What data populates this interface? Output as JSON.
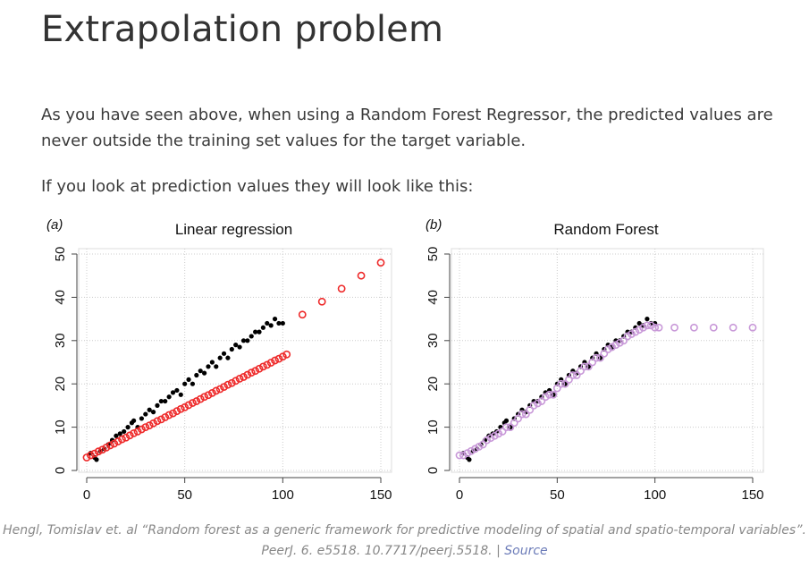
{
  "heading": "Extrapolation problem",
  "paragraph1": "As you have seen above, when using a Random Forest Regressor, the predicted values are never outside the training set values for the target variable.",
  "paragraph2": "If you look at prediction values they will look like this:",
  "caption": {
    "text": "Hengl, Tomislav et. al “Random forest as a generic framework for predictive modeling of spatial and spatio-temporal variables”. PeerJ. 6. e5518. 10.7717/peerj.5518. |",
    "link_label": "Source"
  },
  "colors": {
    "observed": "#000000",
    "lr_pred": "#ee2a2a",
    "rf_pred": "#c898d8",
    "grid": "#cccccc"
  },
  "chart_data": [
    {
      "type": "scatter",
      "panel_label": "(a)",
      "title": "Linear regression",
      "xlabel": "",
      "ylabel": "",
      "xlim": [
        0,
        150
      ],
      "ylim": [
        0,
        50
      ],
      "x_ticks": [
        0,
        50,
        100,
        150
      ],
      "y_ticks": [
        0,
        10,
        20,
        30,
        40,
        50
      ],
      "grid": true,
      "series": [
        {
          "marker": "filled-circle",
          "color": "#000000",
          "points": [
            [
              2,
              4
            ],
            [
              4,
              3
            ],
            [
              5,
              2.5
            ],
            [
              7,
              4.5
            ],
            [
              9,
              5
            ],
            [
              11,
              6
            ],
            [
              13,
              7
            ],
            [
              15,
              8
            ],
            [
              17,
              8.5
            ],
            [
              19,
              9
            ],
            [
              21,
              10
            ],
            [
              23,
              11
            ],
            [
              24,
              11.5
            ],
            [
              26,
              10
            ],
            [
              28,
              12
            ],
            [
              30,
              13
            ],
            [
              32,
              14
            ],
            [
              34,
              13.5
            ],
            [
              36,
              15
            ],
            [
              38,
              16
            ],
            [
              40,
              16
            ],
            [
              42,
              17
            ],
            [
              44,
              18
            ],
            [
              46,
              18.5
            ],
            [
              48,
              17.5
            ],
            [
              50,
              20
            ],
            [
              52,
              21
            ],
            [
              54,
              20
            ],
            [
              56,
              22
            ],
            [
              58,
              23
            ],
            [
              60,
              22.5
            ],
            [
              62,
              24
            ],
            [
              64,
              25
            ],
            [
              66,
              24
            ],
            [
              68,
              26
            ],
            [
              70,
              27
            ],
            [
              72,
              26
            ],
            [
              74,
              28
            ],
            [
              76,
              29
            ],
            [
              78,
              28.5
            ],
            [
              80,
              30
            ],
            [
              82,
              30
            ],
            [
              84,
              31
            ],
            [
              86,
              32
            ],
            [
              88,
              32
            ],
            [
              90,
              33
            ],
            [
              92,
              34
            ],
            [
              94,
              33.5
            ],
            [
              96,
              35
            ],
            [
              98,
              34
            ],
            [
              100,
              34
            ]
          ]
        },
        {
          "marker": "open-circle",
          "color": "#ee2a2a",
          "points": [
            [
              0,
              3
            ],
            [
              2,
              3.5
            ],
            [
              4,
              3.9
            ],
            [
              6,
              4.4
            ],
            [
              8,
              4.8
            ],
            [
              10,
              5.3
            ],
            [
              12,
              5.8
            ],
            [
              14,
              6.2
            ],
            [
              16,
              6.7
            ],
            [
              18,
              7.2
            ],
            [
              20,
              7.6
            ],
            [
              22,
              8.1
            ],
            [
              24,
              8.6
            ],
            [
              26,
              9
            ],
            [
              28,
              9.5
            ],
            [
              30,
              10
            ],
            [
              32,
              10.4
            ],
            [
              34,
              10.9
            ],
            [
              36,
              11.4
            ],
            [
              38,
              11.8
            ],
            [
              40,
              12.3
            ],
            [
              42,
              12.8
            ],
            [
              44,
              13.2
            ],
            [
              46,
              13.7
            ],
            [
              48,
              14.2
            ],
            [
              50,
              14.6
            ],
            [
              52,
              15.1
            ],
            [
              54,
              15.6
            ],
            [
              56,
              16
            ],
            [
              58,
              16.5
            ],
            [
              60,
              17
            ],
            [
              62,
              17.4
            ],
            [
              64,
              17.9
            ],
            [
              66,
              18.4
            ],
            [
              68,
              18.8
            ],
            [
              70,
              19.3
            ],
            [
              72,
              19.8
            ],
            [
              74,
              20.2
            ],
            [
              76,
              20.7
            ],
            [
              78,
              21.2
            ],
            [
              80,
              21.6
            ],
            [
              82,
              22.1
            ],
            [
              84,
              22.6
            ],
            [
              86,
              23
            ],
            [
              88,
              23.5
            ],
            [
              90,
              24
            ],
            [
              92,
              24.4
            ],
            [
              94,
              24.9
            ],
            [
              96,
              25.4
            ],
            [
              98,
              25.8
            ],
            [
              100,
              26.3
            ],
            [
              102,
              26.8
            ],
            [
              110,
              36
            ],
            [
              120,
              39
            ],
            [
              130,
              42
            ],
            [
              140,
              45
            ],
            [
              150,
              48
            ]
          ]
        }
      ]
    },
    {
      "type": "scatter",
      "panel_label": "(b)",
      "title": "Random Forest",
      "xlabel": "",
      "ylabel": "",
      "xlim": [
        0,
        150
      ],
      "ylim": [
        0,
        50
      ],
      "x_ticks": [
        0,
        50,
        100,
        150
      ],
      "y_ticks": [
        0,
        10,
        20,
        30,
        40,
        50
      ],
      "grid": true,
      "series": [
        {
          "marker": "filled-circle",
          "color": "#000000",
          "points": [
            [
              2,
              4
            ],
            [
              4,
              3
            ],
            [
              5,
              2.5
            ],
            [
              7,
              4.5
            ],
            [
              9,
              5
            ],
            [
              11,
              6
            ],
            [
              13,
              7
            ],
            [
              15,
              8
            ],
            [
              17,
              8.5
            ],
            [
              19,
              9
            ],
            [
              21,
              10
            ],
            [
              23,
              11
            ],
            [
              24,
              11.5
            ],
            [
              26,
              10
            ],
            [
              28,
              12
            ],
            [
              30,
              13
            ],
            [
              32,
              14
            ],
            [
              34,
              13.5
            ],
            [
              36,
              15
            ],
            [
              38,
              16
            ],
            [
              40,
              16
            ],
            [
              42,
              17
            ],
            [
              44,
              18
            ],
            [
              46,
              18.5
            ],
            [
              48,
              17.5
            ],
            [
              50,
              20
            ],
            [
              52,
              21
            ],
            [
              54,
              20
            ],
            [
              56,
              22
            ],
            [
              58,
              23
            ],
            [
              60,
              22.5
            ],
            [
              62,
              24
            ],
            [
              64,
              25
            ],
            [
              66,
              24
            ],
            [
              68,
              26
            ],
            [
              70,
              27
            ],
            [
              72,
              26
            ],
            [
              74,
              28
            ],
            [
              76,
              29
            ],
            [
              78,
              28.5
            ],
            [
              80,
              30
            ],
            [
              82,
              30
            ],
            [
              84,
              31
            ],
            [
              86,
              32
            ],
            [
              88,
              32
            ],
            [
              90,
              33
            ],
            [
              92,
              34
            ],
            [
              94,
              33.5
            ],
            [
              96,
              35
            ],
            [
              98,
              34
            ],
            [
              100,
              34
            ]
          ]
        },
        {
          "marker": "open-circle",
          "color": "#c898d8",
          "points": [
            [
              0,
              3.5
            ],
            [
              2,
              3.5
            ],
            [
              4,
              4
            ],
            [
              6,
              4.5
            ],
            [
              8,
              5
            ],
            [
              10,
              5.5
            ],
            [
              12,
              6
            ],
            [
              14,
              7
            ],
            [
              16,
              7.5
            ],
            [
              18,
              8
            ],
            [
              20,
              8.5
            ],
            [
              22,
              9
            ],
            [
              24,
              10
            ],
            [
              26,
              10
            ],
            [
              28,
              11
            ],
            [
              30,
              12
            ],
            [
              32,
              13
            ],
            [
              34,
              13
            ],
            [
              36,
              14
            ],
            [
              38,
              15
            ],
            [
              40,
              15.5
            ],
            [
              42,
              16
            ],
            [
              44,
              17
            ],
            [
              46,
              17.5
            ],
            [
              48,
              17.5
            ],
            [
              50,
              19
            ],
            [
              52,
              20
            ],
            [
              54,
              20
            ],
            [
              56,
              21
            ],
            [
              58,
              22
            ],
            [
              60,
              22
            ],
            [
              62,
              23
            ],
            [
              64,
              24
            ],
            [
              66,
              24
            ],
            [
              68,
              25
            ],
            [
              70,
              26
            ],
            [
              72,
              26
            ],
            [
              74,
              27
            ],
            [
              76,
              28
            ],
            [
              78,
              28.5
            ],
            [
              80,
              29
            ],
            [
              82,
              29.5
            ],
            [
              84,
              30
            ],
            [
              86,
              31
            ],
            [
              88,
              31.5
            ],
            [
              90,
              32
            ],
            [
              92,
              32.5
            ],
            [
              94,
              33
            ],
            [
              96,
              33.5
            ],
            [
              98,
              33.5
            ],
            [
              100,
              33
            ],
            [
              102,
              33
            ],
            [
              110,
              33
            ],
            [
              120,
              33
            ],
            [
              130,
              33
            ],
            [
              140,
              33
            ],
            [
              150,
              33
            ]
          ]
        }
      ]
    }
  ]
}
